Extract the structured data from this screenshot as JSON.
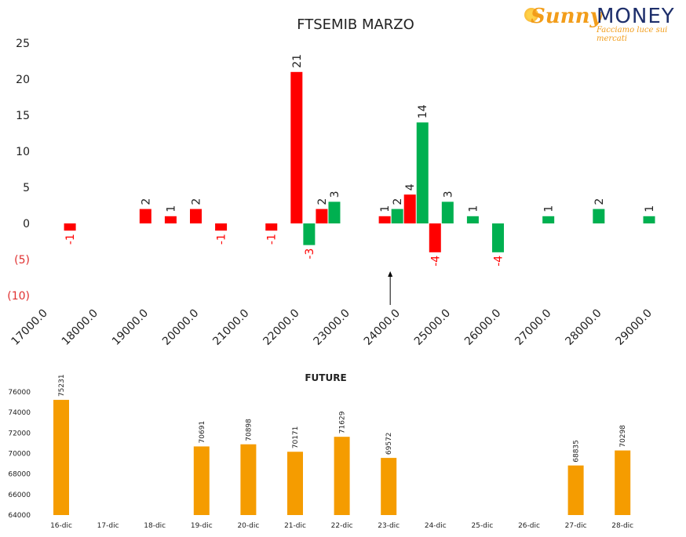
{
  "logo": {
    "brand_left": "Sunny",
    "brand_right": "MONEY",
    "tagline": "Facciamo luce sui mercati"
  },
  "chart_data": [
    {
      "type": "bar",
      "title": "FTSEMIB MARZO",
      "x_ticks": [
        "17000.0",
        "18000.0",
        "19000.0",
        "20000.0",
        "21000.0",
        "22000.0",
        "23000.0",
        "24000.0",
        "25000.0",
        "26000.0",
        "27000.0",
        "28000.0",
        "29000.0"
      ],
      "y_ticks": [
        {
          "value": 25,
          "label": "25"
        },
        {
          "value": 20,
          "label": "20"
        },
        {
          "value": 15,
          "label": "15"
        },
        {
          "value": 10,
          "label": "10"
        },
        {
          "value": 5,
          "label": "5"
        },
        {
          "value": 0,
          "label": "0"
        },
        {
          "value": -5,
          "label": "(5)"
        },
        {
          "value": -10,
          "label": "(10)"
        }
      ],
      "xlim": [
        17000,
        29000
      ],
      "ylim": [
        -10,
        25
      ],
      "grid": false,
      "marker_strike": 24000,
      "colors": {
        "red_series": "#ff0000",
        "green_series": "#00b050",
        "negative_tick": "#e03030"
      },
      "series": [
        {
          "color_key": "red",
          "points": [
            {
              "x": 17500,
              "y": -1,
              "label": "-1"
            },
            {
              "x": 19000,
              "y": 2,
              "label": "2"
            },
            {
              "x": 19500,
              "y": 1,
              "label": "1"
            },
            {
              "x": 20000,
              "y": 2,
              "label": "2"
            },
            {
              "x": 20500,
              "y": -1,
              "label": "-1"
            },
            {
              "x": 21500,
              "y": -1,
              "label": "-1"
            },
            {
              "x": 22000,
              "y": 21,
              "label": "21"
            },
            {
              "x": 22500,
              "y": 2,
              "label": "2"
            },
            {
              "x": 23750,
              "y": 1,
              "label": "1"
            },
            {
              "x": 24250,
              "y": 4,
              "label": "4"
            },
            {
              "x": 24750,
              "y": -4,
              "label": "-4"
            }
          ]
        },
        {
          "color_key": "green",
          "points": [
            {
              "x": 22250,
              "y": -3,
              "label": "-3"
            },
            {
              "x": 22750,
              "y": 3,
              "label": "3"
            },
            {
              "x": 24000,
              "y": 2,
              "label": "2"
            },
            {
              "x": 24500,
              "y": 14,
              "label": "14"
            },
            {
              "x": 25000,
              "y": 3,
              "label": "3"
            },
            {
              "x": 25500,
              "y": 1,
              "label": "1"
            },
            {
              "x": 26000,
              "y": -4,
              "label": "-4"
            },
            {
              "x": 27000,
              "y": 1,
              "label": "1"
            },
            {
              "x": 28000,
              "y": 2,
              "label": "2"
            },
            {
              "x": 29000,
              "y": 1,
              "label": "1"
            }
          ]
        }
      ]
    },
    {
      "type": "bar",
      "title": "FUTURE",
      "categories": [
        "16-dic",
        "17-dic",
        "18-dic",
        "19-dic",
        "20-dic",
        "21-dic",
        "22-dic",
        "23-dic",
        "24-dic",
        "25-dic",
        "26-dic",
        "27-dic",
        "28-dic"
      ],
      "values": [
        75231,
        null,
        null,
        70691,
        70898,
        70171,
        71629,
        69572,
        null,
        null,
        null,
        68835,
        70298
      ],
      "labels": [
        "75231",
        "",
        "",
        "70691",
        "70898",
        "70171",
        "71629",
        "69572",
        "",
        "",
        "",
        "68835",
        "70298"
      ],
      "y_ticks": [
        "64000",
        "66000",
        "68000",
        "70000",
        "72000",
        "74000",
        "76000"
      ],
      "ylim": [
        64000,
        76000
      ],
      "grid": false,
      "colors": {
        "bar": "#f59c00"
      }
    }
  ]
}
